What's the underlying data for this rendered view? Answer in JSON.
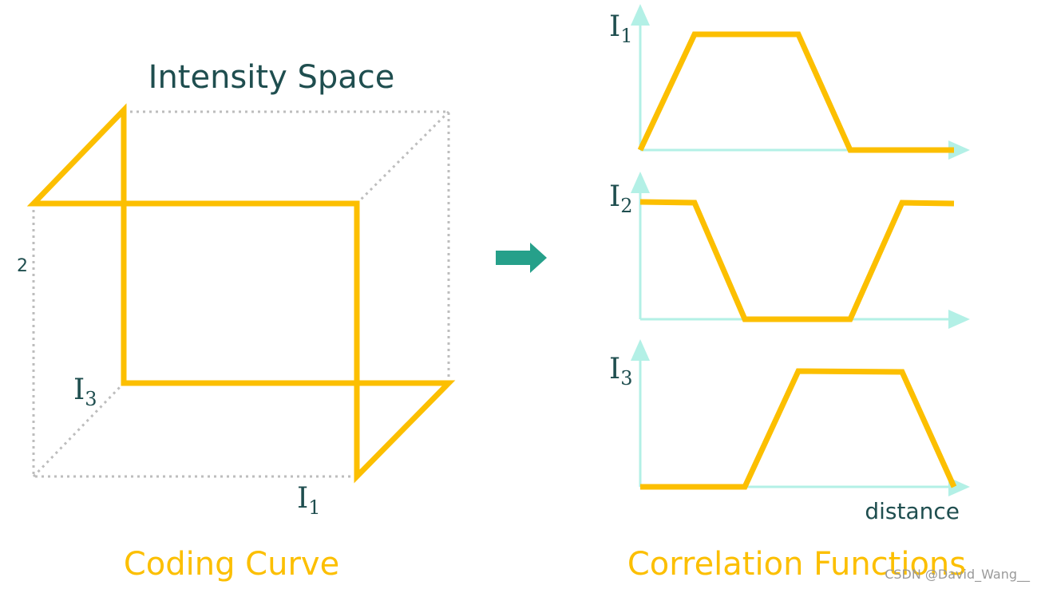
{
  "title": "Intensity Space",
  "cube": {
    "axis_2_label": "2",
    "i3_label": {
      "base": "I",
      "sub": "3"
    },
    "i1_label": {
      "base": "I",
      "sub": "1"
    },
    "caption": "Coding Curve"
  },
  "plots": [
    {
      "label": {
        "base": "I",
        "sub": "1"
      }
    },
    {
      "label": {
        "base": "I",
        "sub": "2"
      }
    },
    {
      "label": {
        "base": "I",
        "sub": "3"
      }
    }
  ],
  "x_axis_label": "distance",
  "caption": "Correlation Functions",
  "watermark": "CSDN @David_Wang__"
}
